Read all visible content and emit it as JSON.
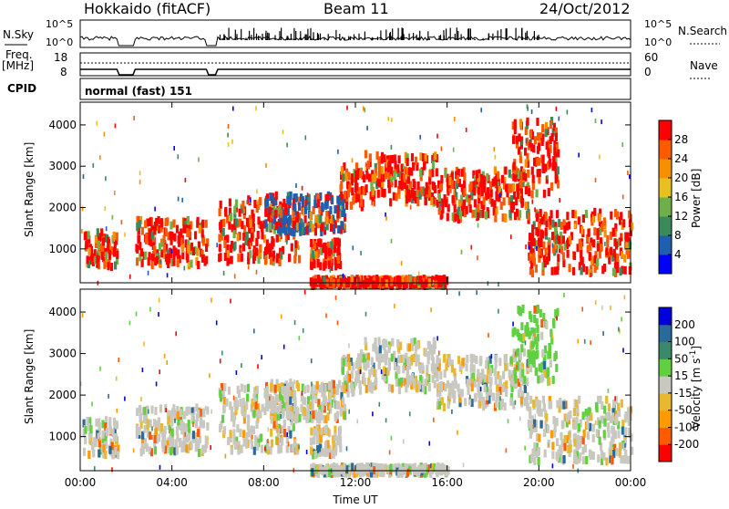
{
  "header": {
    "title": "Hokkaido (fitACF)",
    "beam": "Beam 11",
    "date": "24/Oct/2012"
  },
  "strip": {
    "nsky_label": "N.Sky",
    "nsky_ticks": [
      "10^5",
      "10^0"
    ],
    "nsearch_label": "N.Search",
    "freq_label_line1": "Freq.",
    "freq_label_line2": "[MHz]",
    "freq_ticks": [
      "18",
      "8"
    ],
    "nave_label": "Nave",
    "nave_ticks": [
      "60",
      "0"
    ],
    "cpid_label": "CPID",
    "cpid_value": "normal (fast) 151"
  },
  "chart_data": [
    {
      "type": "heatmap",
      "name": "power",
      "ylabel": "Slant Range [km]",
      "xlabel": "",
      "yticks": [
        1000,
        2000,
        3000,
        4000
      ],
      "xticks": [
        "00:00",
        "04:00",
        "08:00",
        "12:00",
        "16:00",
        "20:00",
        "00:00"
      ],
      "colorbar": {
        "label": "Power [dB]",
        "ticks": [
          "28",
          "24",
          "20",
          "16",
          "12",
          "8",
          "4"
        ],
        "colors": [
          "#0000ff",
          "#1f5faf",
          "#3a8a5a",
          "#6db04a",
          "#e8c020",
          "#f59000",
          "#ff5a00",
          "#ff0000"
        ]
      }
    },
    {
      "type": "heatmap",
      "name": "velocity",
      "ylabel": "Slant Range [km]",
      "xlabel": "Time UT",
      "yticks": [
        1000,
        2000,
        3000,
        4000
      ],
      "xticks": [
        "00:00",
        "04:00",
        "08:00",
        "12:00",
        "16:00",
        "20:00",
        "00:00"
      ],
      "colorbar": {
        "label": "Velocity [m s",
        "label_sup": "-1",
        "label_end": "]",
        "ticks": [
          "200",
          "100",
          "50",
          "15",
          "-15",
          "-50",
          "-100",
          "-200"
        ],
        "colors": [
          "#ff0000",
          "#ff5a00",
          "#ff9a00",
          "#e8b830",
          "#c8c8c0",
          "#5fd040",
          "#3a8a6a",
          "#2a6a9a",
          "#0000dd"
        ]
      }
    }
  ]
}
